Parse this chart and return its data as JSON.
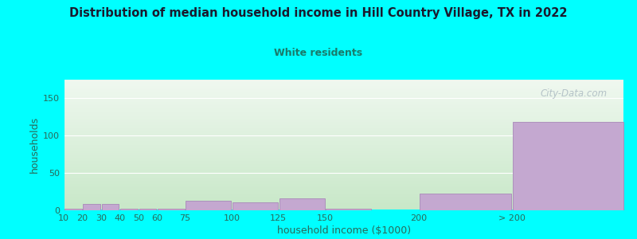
{
  "title": "Distribution of median household income in Hill Country Village, TX in 2022",
  "subtitle": "White residents",
  "xlabel": "household income ($1000)",
  "ylabel": "households",
  "background_color": "#00FFFF",
  "plot_bg_top_left": "#d6ecd6",
  "plot_bg_top_right": "#f0f0f8",
  "plot_bg_bottom": "#e8f5e8",
  "bar_color": "#c4a8d0",
  "bar_edge_color": "#a888b8",
  "title_color": "#1a1a2e",
  "subtitle_color": "#1a7a6a",
  "axis_label_color": "#2a6a5a",
  "tick_label_color": "#2a6a5a",
  "watermark": "City-Data.com",
  "values": [
    2,
    8,
    8,
    2,
    2,
    2,
    13,
    11,
    16,
    2,
    22,
    118
  ],
  "bar_lefts": [
    10,
    20,
    30,
    40,
    50,
    60,
    75,
    100,
    125,
    150,
    200,
    250
  ],
  "bar_widths": [
    10,
    10,
    10,
    10,
    10,
    15,
    25,
    25,
    25,
    25,
    50,
    60
  ],
  "xlim": [
    10,
    310
  ],
  "ylim": [
    0,
    175
  ],
  "yticks": [
    0,
    50,
    100,
    150
  ],
  "xtick_positions": [
    10,
    20,
    30,
    40,
    50,
    60,
    75,
    100,
    125,
    150,
    200,
    250
  ],
  "xtick_labels": [
    "10",
    "20",
    "30",
    "40",
    "50",
    "60",
    "75",
    "100",
    "125",
    "150",
    "200",
    "> 200"
  ]
}
